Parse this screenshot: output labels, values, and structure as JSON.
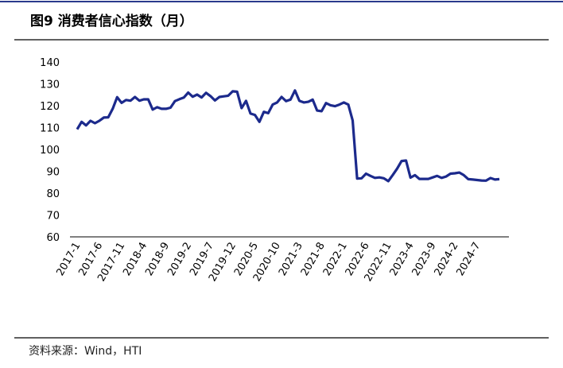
{
  "chart_data": {
    "type": "line",
    "title": "图9  消费者信心指数（月）",
    "source": "资料来源：Wind，HTI",
    "categories": [
      "2017-1",
      null,
      null,
      null,
      null,
      "2017-6",
      null,
      null,
      null,
      null,
      "2017-11",
      null,
      null,
      null,
      null,
      "2018-4",
      null,
      null,
      null,
      null,
      "2018-9",
      null,
      null,
      null,
      null,
      "2019-2",
      null,
      null,
      null,
      null,
      "2019-7",
      null,
      null,
      null,
      null,
      "2019-12",
      null,
      null,
      null,
      null,
      "2020-5",
      null,
      null,
      null,
      null,
      "2020-10",
      null,
      null,
      null,
      null,
      "2021-3",
      null,
      null,
      null,
      null,
      "2021-8",
      null,
      null,
      null,
      null,
      "2022-1",
      null,
      null,
      null,
      null,
      "2022-6",
      null,
      null,
      null,
      null,
      "2022-11",
      null,
      null,
      null,
      null,
      "2023-4",
      null,
      null,
      null,
      null,
      "2023-9",
      null,
      null,
      null,
      null,
      "2024-2",
      null,
      null,
      null,
      null,
      "2024-7",
      null,
      null,
      null,
      null,
      null
    ],
    "series": [
      {
        "name": "消费者信心指数",
        "color": "#1c2a8c",
        "values": [
          109.2,
          112.6,
          111.0,
          113.1,
          112.0,
          113.1,
          114.6,
          114.7,
          118.6,
          123.9,
          121.3,
          122.6,
          122.3,
          124.0,
          122.3,
          122.9,
          122.9,
          118.2,
          119.3,
          118.6,
          118.6,
          119.1,
          122.1,
          123.0,
          123.7,
          126.0,
          124.1,
          125.1,
          123.8,
          125.9,
          124.4,
          122.4,
          124.0,
          124.3,
          124.6,
          126.6,
          126.4,
          118.9,
          122.2,
          116.4,
          115.8,
          112.6,
          117.2,
          116.6,
          120.5,
          121.5,
          124.0,
          122.1,
          122.8,
          127.0,
          122.2,
          121.5,
          121.8,
          122.8,
          117.8,
          117.5,
          121.2,
          120.2,
          119.8,
          120.5,
          121.5,
          120.5,
          113.2,
          86.7,
          86.8,
          88.9,
          87.9,
          87.0,
          87.2,
          86.8,
          85.5,
          88.3,
          91.2,
          94.7,
          94.9,
          87.1,
          88.2,
          86.5,
          86.5,
          86.5,
          87.2,
          87.9,
          87.0,
          87.6,
          88.9,
          89.1,
          89.4,
          88.2,
          86.4,
          86.2,
          86.0,
          85.8,
          85.7,
          86.9,
          86.2,
          86.4
        ]
      }
    ],
    "ylim": [
      60,
      140
    ],
    "yticks": [
      60,
      70,
      80,
      90,
      100,
      110,
      120,
      130,
      140
    ],
    "grid": false
  }
}
